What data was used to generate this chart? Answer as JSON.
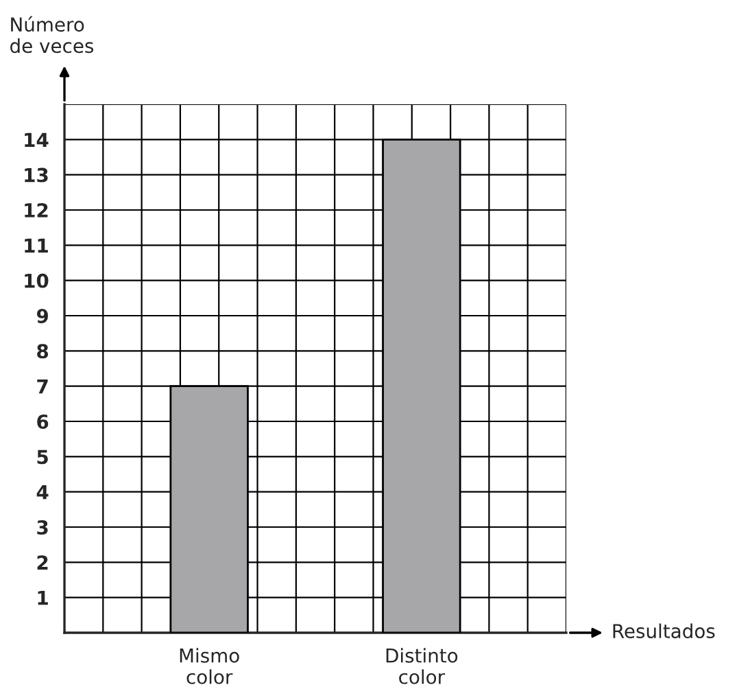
{
  "chart_data": {
    "type": "bar",
    "xlabel": "Resultados",
    "ylabel": "Número\nde veces",
    "categories": [
      "Mismo\ncolor",
      "Distinto\ncolor"
    ],
    "values": [
      7,
      14
    ],
    "color": "#a7a7aa",
    "ylim": [
      0,
      15
    ],
    "yticks": [
      1,
      2,
      3,
      4,
      5,
      6,
      7,
      8,
      9,
      10,
      11,
      12,
      13,
      14
    ],
    "grid": true
  }
}
